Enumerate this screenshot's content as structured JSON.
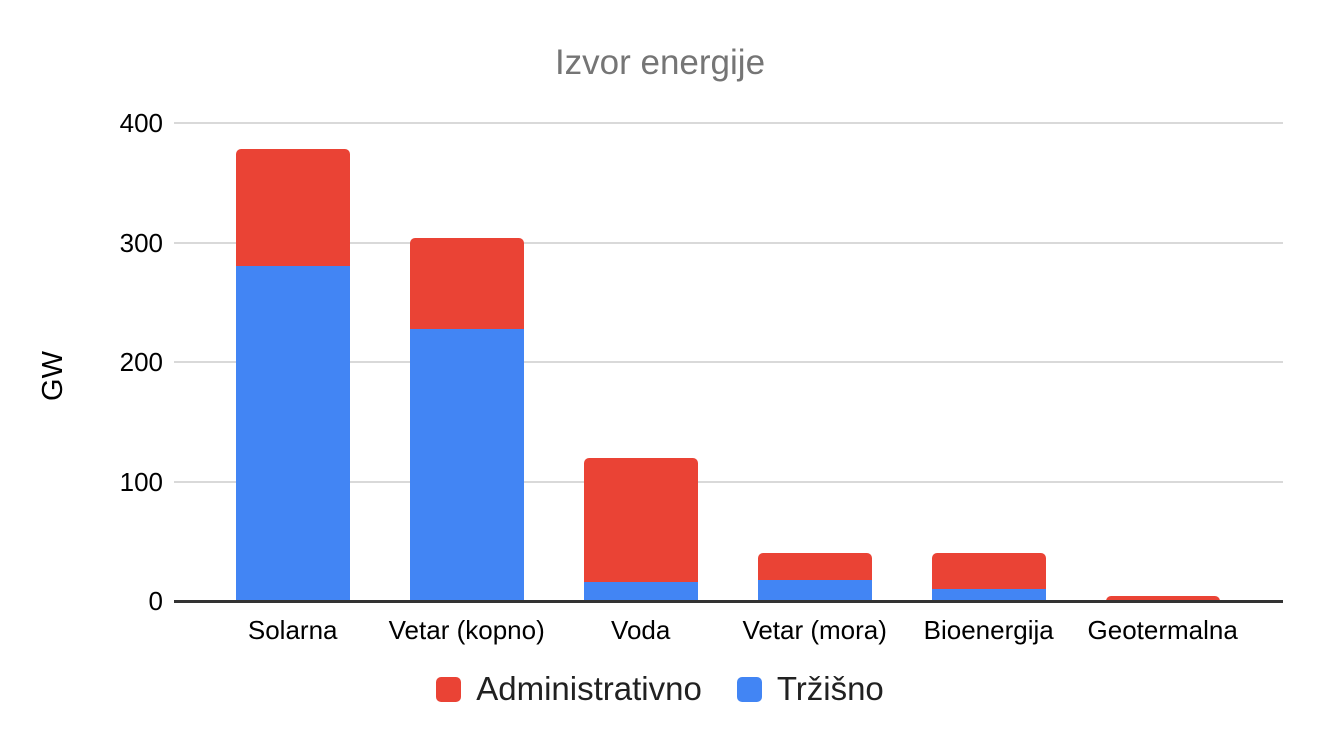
{
  "chart_data": {
    "type": "bar",
    "stacked": true,
    "title": "Izvor energije",
    "xlabel": "",
    "ylabel": "GW",
    "categories": [
      "Solarna",
      "Vetar (kopno)",
      "Voda",
      "Vetar (mora)",
      "Bioenergija",
      "Geotermalna"
    ],
    "series": [
      {
        "name": "Tržišno",
        "color": "#4285F4",
        "values": [
          280,
          228,
          16,
          18,
          10,
          0
        ]
      },
      {
        "name": "Administrativno",
        "color": "#EA4335",
        "values": [
          98,
          76,
          104,
          22,
          30,
          4
        ]
      }
    ],
    "totals": [
      378,
      304,
      120,
      40,
      40,
      4
    ],
    "ylim": [
      0,
      400
    ],
    "yticks": [
      0,
      100,
      200,
      300,
      400
    ],
    "grid": true,
    "legend_position": "bottom",
    "legend_order": [
      "Administrativno",
      "Tržišno"
    ]
  },
  "colors": {
    "administrativno_red": "#EA4335",
    "trzisno_blue": "#4285F4",
    "title_gray": "#757575",
    "gridline_gray": "#d9d9d9",
    "axis_dark": "#333333",
    "background": "#ffffff"
  }
}
